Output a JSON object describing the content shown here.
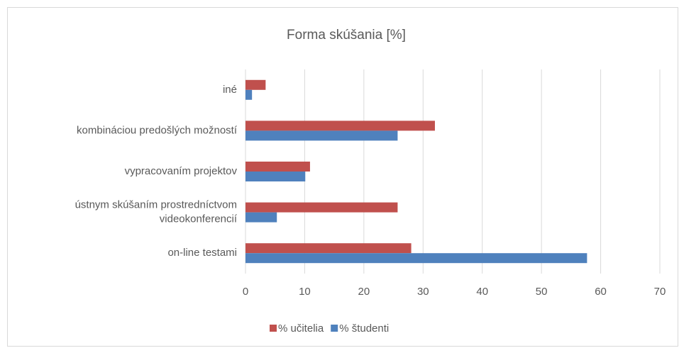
{
  "chart_data": {
    "type": "bar",
    "orientation": "horizontal",
    "title": "Forma skúšania [%]",
    "categories": [
      "on-line testami",
      "ústnym skúšaním prostredníctvom videokonferencií",
      "vypracovaním projektov",
      "kombináciou predošlých možností",
      "iné"
    ],
    "series": [
      {
        "name": "% učitelia",
        "color": "#c0504d",
        "values": [
          28.0,
          25.7,
          10.9,
          32.0,
          3.4
        ]
      },
      {
        "name": "% študenti",
        "color": "#4f81bd",
        "values": [
          57.7,
          5.3,
          10.1,
          25.7,
          1.1
        ]
      }
    ],
    "xlim": [
      0,
      70
    ],
    "xticks": [
      0,
      10,
      20,
      30,
      40,
      50,
      60,
      70
    ],
    "grid": true,
    "legend": "bottom"
  }
}
